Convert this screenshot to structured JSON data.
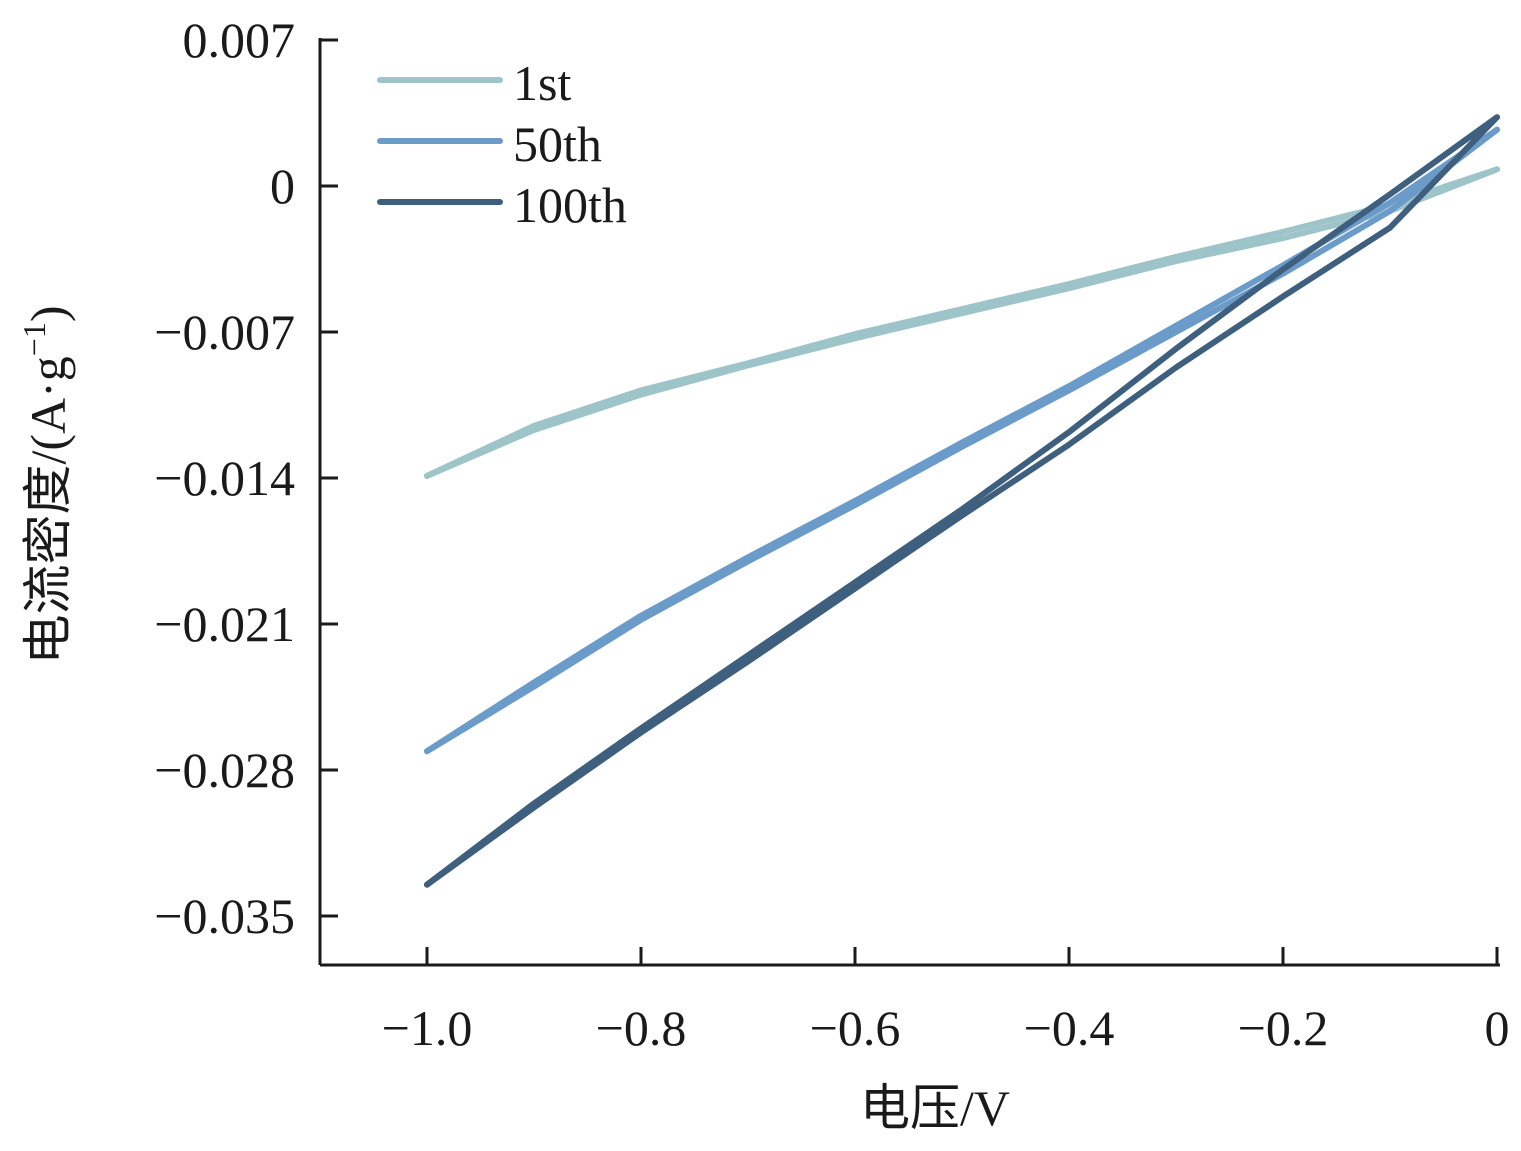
{
  "chart_data": {
    "type": "line",
    "xlabel": "电压/V",
    "ylabel": "电流密度/(A·g",
    "ylabel_sup": "−1",
    "ylabel_close": ")",
    "xlim": [
      -1.1,
      0.0
    ],
    "ylim": [
      -0.0375,
      0.007
    ],
    "xticks": [
      -1.0,
      -0.8,
      -0.6,
      -0.4,
      -0.2,
      0.0
    ],
    "xtick_labels": [
      "−1.0",
      "−0.8",
      "−0.6",
      "−0.4",
      "−0.2",
      "0"
    ],
    "yticks": [
      0.007,
      0.0,
      -0.007,
      -0.014,
      -0.021,
      -0.028,
      -0.035
    ],
    "ytick_labels": [
      "0.007",
      "0",
      "−0.007",
      "−0.014",
      "−0.021",
      "−0.028",
      "−0.035"
    ],
    "legend_position": "top-left",
    "series": [
      {
        "name": "1st",
        "color": "#9dc4c9",
        "forward": {
          "x": [
            -1.0,
            -0.9,
            -0.8,
            -0.7,
            -0.6,
            -0.5,
            -0.4,
            -0.3,
            -0.2,
            -0.1,
            0.0
          ],
          "y": [
            -0.0139,
            -0.0117,
            -0.01,
            -0.0086,
            -0.0073,
            -0.0061,
            -0.0049,
            -0.0036,
            -0.0025,
            -0.0012,
            0.0008
          ]
        },
        "reverse": {
          "x": [
            0.0,
            -0.1,
            -0.2,
            -0.3,
            -0.4,
            -0.5,
            -0.6,
            -0.7,
            -0.8,
            -0.9,
            -1.0
          ],
          "y": [
            0.0008,
            -0.0009,
            -0.0022,
            -0.0034,
            -0.0047,
            -0.0059,
            -0.0071,
            -0.0085,
            -0.0098,
            -0.0115,
            -0.0139
          ]
        }
      },
      {
        "name": "50th",
        "color": "#6b9bc9",
        "forward": {
          "x": [
            -1.0,
            -0.9,
            -0.8,
            -0.7,
            -0.6,
            -0.5,
            -0.4,
            -0.3,
            -0.2,
            -0.1,
            0.0
          ],
          "y": [
            -0.0271,
            -0.024,
            -0.0208,
            -0.018,
            -0.0153,
            -0.0125,
            -0.0098,
            -0.007,
            -0.0042,
            -0.0012,
            0.0027
          ]
        },
        "reverse": {
          "x": [
            0.0,
            -0.1,
            -0.2,
            -0.3,
            -0.4,
            -0.5,
            -0.6,
            -0.7,
            -0.8,
            -0.9,
            -1.0
          ],
          "y": [
            0.0027,
            -0.0008,
            -0.0038,
            -0.0067,
            -0.0096,
            -0.0123,
            -0.0151,
            -0.0178,
            -0.0206,
            -0.0238,
            -0.0271
          ]
        }
      },
      {
        "name": "100th",
        "color": "#3f5f7f",
        "forward": {
          "x": [
            -1.0,
            -0.9,
            -0.8,
            -0.7,
            -0.6,
            -0.5,
            -0.4,
            -0.3,
            -0.2,
            -0.1,
            0.0
          ],
          "y": [
            -0.0335,
            -0.0298,
            -0.0262,
            -0.0228,
            -0.0193,
            -0.0158,
            -0.0124,
            -0.0087,
            -0.0053,
            -0.002,
            0.0033
          ]
        },
        "reverse": {
          "x": [
            0.0,
            -0.1,
            -0.2,
            -0.3,
            -0.4,
            -0.5,
            -0.6,
            -0.7,
            -0.8,
            -0.9,
            -1.0
          ],
          "y": [
            0.0033,
            -0.0004,
            -0.004,
            -0.0078,
            -0.0118,
            -0.0155,
            -0.019,
            -0.0225,
            -0.026,
            -0.0296,
            -0.0335
          ]
        }
      }
    ]
  }
}
